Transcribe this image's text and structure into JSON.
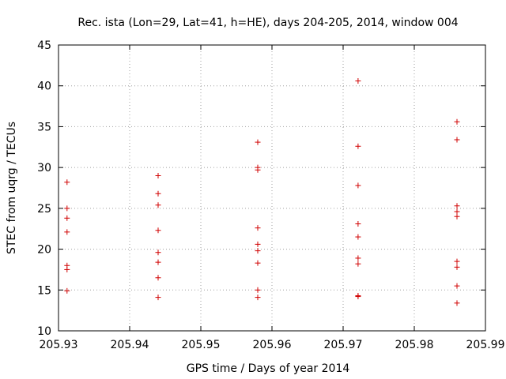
{
  "chart_data": {
    "type": "scatter",
    "title": "Rec. ista (Lon=29, Lat=41, h=HE), days 204-205, 2014, window 004",
    "xlabel": "GPS time / Days of year 2014",
    "ylabel": "STEC from uqrg / TECUs",
    "xlim": [
      205.93,
      205.99
    ],
    "ylim": [
      10,
      45
    ],
    "xticks": [
      205.93,
      205.94,
      205.95,
      205.96,
      205.97,
      205.98,
      205.99
    ],
    "xtick_labels": [
      "205.93",
      "205.94",
      "205.95",
      "205.96",
      "205.97",
      "205.98",
      "205.99"
    ],
    "yticks": [
      10,
      15,
      20,
      25,
      30,
      35,
      40,
      45
    ],
    "ytick_labels": [
      "10",
      "15",
      "20",
      "25",
      "30",
      "35",
      "40",
      "45"
    ],
    "grid": true,
    "marker": "+",
    "color": "#d00000",
    "series": [
      {
        "name": "STEC",
        "points": [
          [
            205.9312,
            28.2
          ],
          [
            205.9312,
            25.0
          ],
          [
            205.9312,
            23.8
          ],
          [
            205.9312,
            22.1
          ],
          [
            205.9312,
            18.0
          ],
          [
            205.9312,
            17.5
          ],
          [
            205.9312,
            14.9
          ],
          [
            205.944,
            29.0
          ],
          [
            205.944,
            26.8
          ],
          [
            205.944,
            25.4
          ],
          [
            205.944,
            22.3
          ],
          [
            205.944,
            19.6
          ],
          [
            205.944,
            18.4
          ],
          [
            205.944,
            16.5
          ],
          [
            205.944,
            14.1
          ],
          [
            205.958,
            33.1
          ],
          [
            205.958,
            30.0
          ],
          [
            205.958,
            29.7
          ],
          [
            205.958,
            22.6
          ],
          [
            205.958,
            20.6
          ],
          [
            205.958,
            19.8
          ],
          [
            205.958,
            18.3
          ],
          [
            205.958,
            15.0
          ],
          [
            205.958,
            14.1
          ],
          [
            205.9721,
            40.6
          ],
          [
            205.9721,
            32.6
          ],
          [
            205.9721,
            27.8
          ],
          [
            205.9721,
            23.1
          ],
          [
            205.9721,
            21.5
          ],
          [
            205.9721,
            18.9
          ],
          [
            205.9721,
            18.2
          ],
          [
            205.9721,
            14.3
          ],
          [
            205.9721,
            14.2
          ],
          [
            205.986,
            35.6
          ],
          [
            205.986,
            33.4
          ],
          [
            205.986,
            25.3
          ],
          [
            205.986,
            24.6
          ],
          [
            205.986,
            24.0
          ],
          [
            205.986,
            18.5
          ],
          [
            205.986,
            17.8
          ],
          [
            205.986,
            15.5
          ],
          [
            205.986,
            13.4
          ]
        ]
      }
    ]
  }
}
